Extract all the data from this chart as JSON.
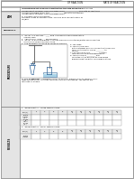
{
  "title_left": "OF REACTION",
  "title_right": "RATE OF REACTION",
  "subtitle": "THE EFFECT OF SIZE OF A REACTANT ON THE RATE OF REACTION",
  "aim_line1": "To find the effect of size of a reactant on the rate of reaction.",
  "aim_line2": "Independent Variable: Size of marble chips _____________ The rate of reaction?",
  "aim_line3": "As size of marble chips, the _____________ the rate of reaction.",
  "aim_line4": "Independent Variable: Size of marble chips",
  "aim_line5": "a) variable: Rate of reaction",
  "aim_line6": "variable: Mass of marble chips, volume and concentration of",
  "aim_line7": "HCl/gas.",
  "materials_label": "MATERIALS",
  "procedure_label": "PROCEDURE",
  "results_label": "RESULTS",
  "proc1": "1.  40 cm³ of 2 mol dm⁻³ ____ acid is measured and poured into a",
  "proc1b": "    conical flask.",
  "proc2": "2.  About 5 g of large ___ are weighed.",
  "proc3": "3.  40 cm³ is filled with water. It is then placed in a container/water and connected",
  "proc3b": "    electrically using a delivery tube.",
  "proc4": "4.  The apparatus is set up as shown in Figure 1.",
  "nota": "a. The large",
  "notb": "b. The volume flask",
  "notb2": "   with a stopper which is connected to delivery",
  "notb3": "   tube. All the water being ________ to",
  "notb4": "   collect.",
  "notc": "c. The conical flask is ________ thereby",
  "notc2": "   throughout the whole experiment.",
  "notd": "d. The volume of _________ gas",
  "notd2": "   collected in the position by downward",
  "notd3": "   displacement of water is recorded at 30s.",
  "proc_b": "b) This experiment is repeated using 1 g of small marble chips to replace 1 g of",
  "proc_b2": "large marble chips. All other conditions remain unchanged. The results are",
  "proc_b3": "recorded in a table.",
  "exp1_title": "1.  Experiment 1 : Large Marble Chips",
  "exp2_title": "2.  Experiment 2 : Small Marble Chips",
  "col_headers": [
    "Time(s)",
    "0",
    "30",
    "60",
    "90",
    "1:0\n0",
    "1:3\n0",
    "2:0\n0",
    "2:3\n0",
    "3:0\n0",
    "3:3\n0"
  ],
  "row1_labels": [
    "Burette\nreadings\n(cm³)",
    "Volume\nof\ncarbon\ndioxide\n(cm³)"
  ],
  "row2_labels": [
    "Burette\nreadings"
  ],
  "bg_color": "#ffffff",
  "gray_tri": "#c0c0c0",
  "text_color": "#111111",
  "border_color": "#888888",
  "label_bg": "#e4e4e4",
  "cell_bg": "#ffffff",
  "header_cell_bg": "#f0f0f0"
}
